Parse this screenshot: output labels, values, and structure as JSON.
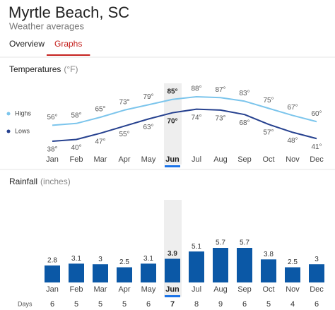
{
  "header": {
    "title": "Myrtle Beach, SC",
    "subtitle": "Weather averages"
  },
  "tabs": [
    "Overview",
    "Graphs"
  ],
  "active_tab": 1,
  "chart_data": [
    {
      "type": "line",
      "title": "Temperatures",
      "unit": "(°F)",
      "categories": [
        "Jan",
        "Feb",
        "Mar",
        "Apr",
        "May",
        "Jun",
        "Jul",
        "Aug",
        "Sep",
        "Oct",
        "Nov",
        "Dec"
      ],
      "highlight": "Jun",
      "series": [
        {
          "name": "Highs",
          "color": "#7cc5ec",
          "values": [
            56,
            58,
            65,
            73,
            79,
            85,
            88,
            87,
            83,
            75,
            67,
            60
          ],
          "value_labels": [
            "56°",
            "58°",
            "65°",
            "73°",
            "79°",
            "85°",
            "88°",
            "87°",
            "83°",
            "75°",
            "67°",
            "60°"
          ]
        },
        {
          "name": "Lows",
          "color": "#26418f",
          "values": [
            38,
            40,
            47,
            55,
            63,
            70,
            74,
            73,
            68,
            57,
            48,
            41
          ],
          "value_labels": [
            "38°",
            "40°",
            "47°",
            "55°",
            "63°",
            "70°",
            "74°",
            "73°",
            "68°",
            "57°",
            "48°",
            "41°"
          ]
        }
      ]
    },
    {
      "type": "bar",
      "title": "Rainfall",
      "unit": "(inches)",
      "categories": [
        "Jan",
        "Feb",
        "Mar",
        "Apr",
        "May",
        "Jun",
        "Jul",
        "Aug",
        "Sep",
        "Oct",
        "Nov",
        "Dec"
      ],
      "highlight": "Jun",
      "color": "#0b58a6",
      "values": [
        2.8,
        3.1,
        3,
        2.5,
        3.1,
        3.9,
        5.1,
        5.7,
        5.7,
        3.8,
        2.5,
        3
      ],
      "days_label": "Days",
      "days": [
        6,
        5,
        5,
        5,
        6,
        7,
        8,
        9,
        6,
        5,
        4,
        6
      ]
    }
  ]
}
